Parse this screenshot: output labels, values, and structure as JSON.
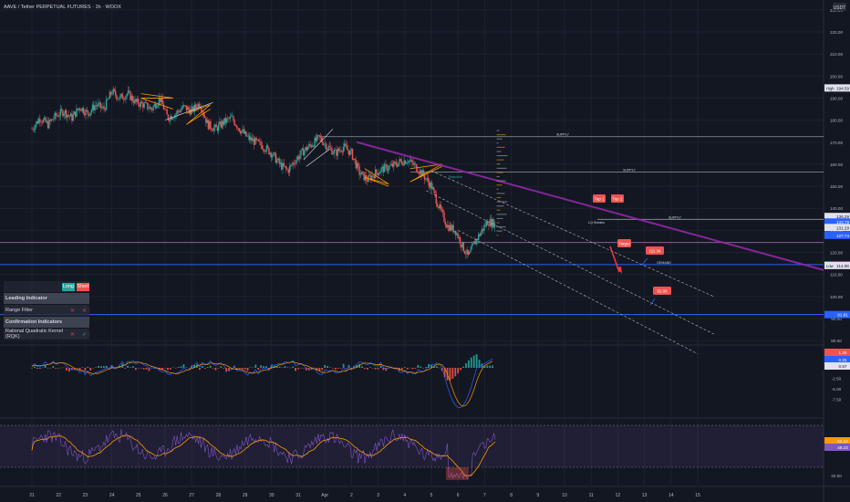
{
  "header": {
    "title": "AAVE / Tether PERPETUAL FUTURES · 1h · WOOX"
  },
  "currency_label": "USDT",
  "colors": {
    "bg": "#131722",
    "up": "#26a69a",
    "down": "#ef5350",
    "accent": "#2962ff",
    "purple": "#9c27b0",
    "orange": "#ff9800"
  },
  "chart_data": [
    {
      "type": "candlestick",
      "title": "AAVE / Tether PERPETUAL FUTURES · 1h · WOOX",
      "y_scale": "linear",
      "ylim": [
        78,
        232
      ],
      "y_ticks": [
        "230.00",
        "220.00",
        "210.00",
        "200.00",
        "190.00",
        "180.00",
        "170.00",
        "160.00",
        "150.00",
        "140.00",
        "130.00",
        "120.00",
        "110.00",
        "100.00",
        "90.00",
        "80.00"
      ],
      "x_ticks": [
        "21",
        "22",
        "23",
        "24",
        "25",
        "26",
        "27",
        "28",
        "29",
        "30",
        "31",
        "Apr",
        "2",
        "3",
        "4",
        "5",
        "6",
        "7",
        "8",
        "9",
        "10",
        "11",
        "12",
        "13",
        "14",
        "15"
      ],
      "price_path": [
        [
          21.0,
          176
        ],
        [
          21.3,
          181
        ],
        [
          21.6,
          178
        ],
        [
          21.9,
          182
        ],
        [
          22.2,
          184
        ],
        [
          22.5,
          181
        ],
        [
          22.8,
          186
        ],
        [
          23.1,
          183
        ],
        [
          23.4,
          187
        ],
        [
          23.7,
          185
        ],
        [
          24.0,
          193
        ],
        [
          24.3,
          190
        ],
        [
          24.6,
          192
        ],
        [
          24.9,
          188
        ],
        [
          25.2,
          187
        ],
        [
          25.5,
          185
        ],
        [
          25.8,
          190
        ],
        [
          26.1,
          181
        ],
        [
          26.4,
          183
        ],
        [
          26.7,
          186
        ],
        [
          27.0,
          184
        ],
        [
          27.3,
          188
        ],
        [
          27.6,
          178
        ],
        [
          27.9,
          176
        ],
        [
          28.2,
          179
        ],
        [
          28.5,
          181
        ],
        [
          28.8,
          176
        ],
        [
          29.1,
          172
        ],
        [
          29.4,
          170
        ],
        [
          29.7,
          168
        ],
        [
          30.0,
          165
        ],
        [
          30.3,
          160
        ],
        [
          30.6,
          157
        ],
        [
          30.9,
          162
        ],
        [
          31.2,
          166
        ],
        [
          31.5,
          169
        ],
        [
          31.8,
          172
        ],
        [
          32.1,
          168
        ],
        [
          32.4,
          165
        ],
        [
          32.7,
          168
        ],
        [
          33.0,
          165
        ],
        [
          33.3,
          156
        ],
        [
          33.6,
          153
        ],
        [
          33.9,
          156
        ],
        [
          34.2,
          158
        ],
        [
          34.5,
          159
        ],
        [
          34.8,
          161
        ],
        [
          35.1,
          162
        ],
        [
          35.4,
          159
        ],
        [
          35.7,
          155
        ],
        [
          36.0,
          150
        ],
        [
          36.3,
          140
        ],
        [
          36.6,
          132
        ],
        [
          36.9,
          130
        ],
        [
          37.2,
          122
        ],
        [
          37.4,
          118
        ],
        [
          37.6,
          124
        ],
        [
          37.9,
          130
        ],
        [
          38.1,
          134
        ],
        [
          38.4,
          133
        ]
      ],
      "horizontal_levels": [
        {
          "price": 172.5,
          "label": "SUPPLY"
        },
        {
          "price": 156.5,
          "label": "SUPPLY"
        },
        {
          "price": 135.0,
          "label": "SUPPLY"
        },
        {
          "price": 124.5,
          "label": ""
        },
        {
          "price": 114.5,
          "label": "DEMAND"
        }
      ],
      "annotations": [
        {
          "text": "Top 1",
          "kind": "tag"
        },
        {
          "text": "Top 2",
          "kind": "tag"
        },
        {
          "text": "Target",
          "kind": "tag"
        },
        {
          "text": "111.34",
          "kind": "target"
        },
        {
          "text": "92.08",
          "kind": "target"
        },
        {
          "text": "Rejection",
          "kind": "label"
        },
        {
          "text": "LQ Breaks",
          "kind": "label"
        }
      ],
      "price_labels": [
        {
          "price": 194.59,
          "text": "194.59",
          "tag": "High",
          "color": "#e0e3eb"
        },
        {
          "price": 136.29,
          "text": "136.29",
          "tag": "",
          "color": "#e0e3eb"
        },
        {
          "price": 133.79,
          "text": "133.79",
          "tag": "",
          "color": "#2962ff"
        },
        {
          "price": 131.29,
          "text": "131.29",
          "tag": "",
          "color": "#e0e3eb"
        },
        {
          "price": 127.74,
          "text": "127.74",
          "tag": "",
          "color": "#2962ff"
        },
        {
          "price": 114.34,
          "text": "114.34",
          "tag": "",
          "color": "#2962ff"
        },
        {
          "price": 114.08,
          "text": "114.08",
          "tag": "Low",
          "color": "#e0e3eb"
        },
        {
          "price": 91.81,
          "text": "91.81",
          "tag": "",
          "color": "#2962ff"
        }
      ]
    },
    {
      "type": "line",
      "title": "",
      "y_ticks": [
        "2.50",
        "-2.50",
        "-5.00",
        "-7.50"
      ],
      "value_labels": [
        {
          "text": "1.28",
          "color": "#ef5350"
        },
        {
          "text": "0.25",
          "color": "#2962ff"
        },
        {
          "text": "0.57",
          "color": "#e0e3eb"
        }
      ]
    },
    {
      "type": "line",
      "title": "",
      "y_ticks": [
        "20.00"
      ],
      "value_labels": [
        {
          "text": "52.13",
          "color": "#ff9800"
        },
        {
          "text": "49.23",
          "color": "#7e57c2"
        }
      ]
    }
  ],
  "indicator_panel": {
    "headers": {
      "long": "Long",
      "short": "Short"
    },
    "rows": [
      {
        "label": "Leading Indicator",
        "type": "section"
      },
      {
        "label": "Range Filter",
        "type": "row",
        "long": "✕",
        "short": "✕"
      },
      {
        "label": "Confirmation Indicators",
        "type": "section"
      },
      {
        "label": "Rational Quadratic Kernel (RQK)",
        "type": "row",
        "long": "✕",
        "short": "✓"
      }
    ]
  }
}
